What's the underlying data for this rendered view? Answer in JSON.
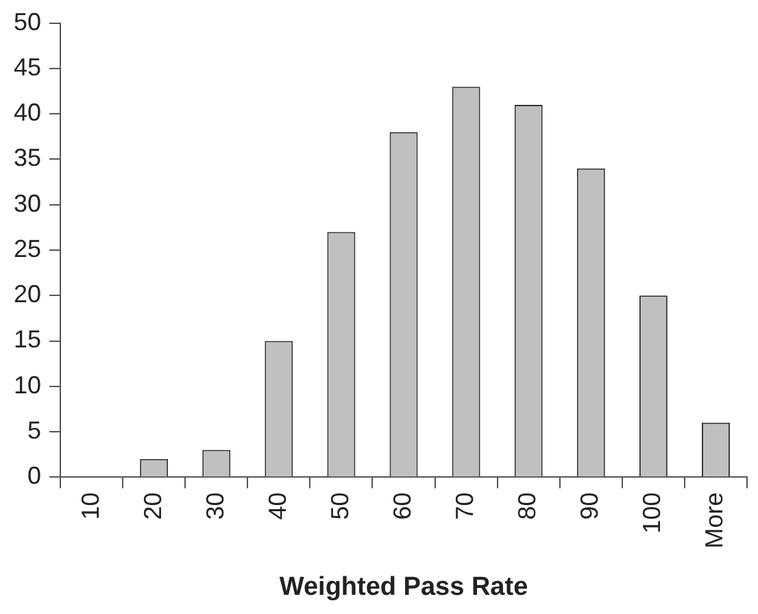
{
  "chart_data": {
    "type": "bar",
    "xlabel": "Weighted Pass Rate",
    "categories": [
      "10",
      "20",
      "30",
      "40",
      "50",
      "60",
      "70",
      "80",
      "90",
      "100",
      "More"
    ],
    "values": [
      0,
      2,
      3,
      15,
      27,
      38,
      43,
      41,
      34,
      20,
      6
    ],
    "color": "#c0c0c0",
    "ylim": [
      0,
      50
    ],
    "yticks": [
      0,
      5,
      10,
      15,
      20,
      25,
      30,
      35,
      40,
      45,
      50
    ],
    "grid": false,
    "legend": false
  }
}
